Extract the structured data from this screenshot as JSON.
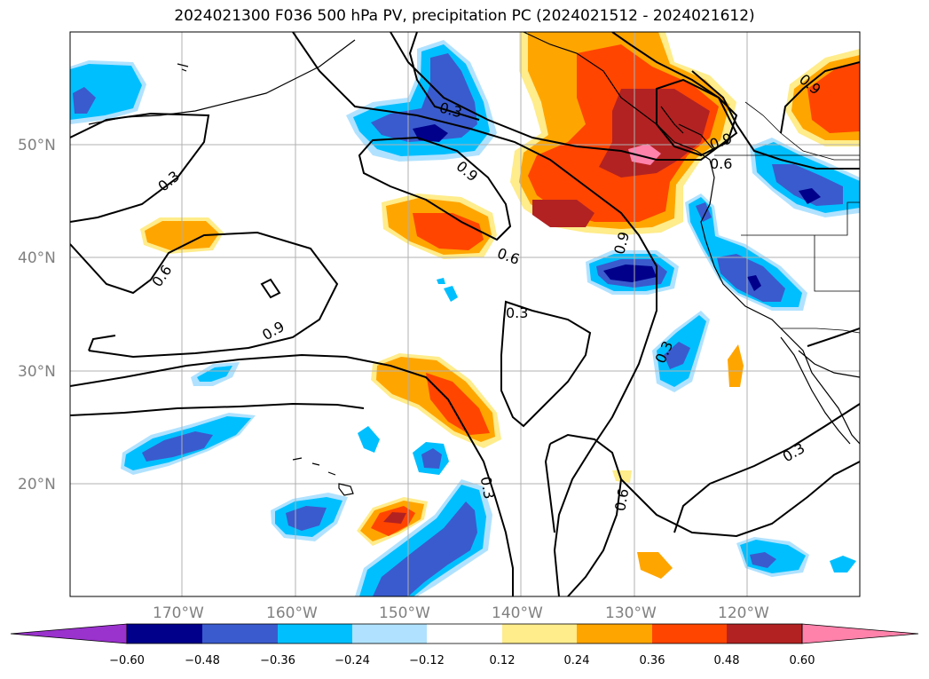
{
  "title": "2024021300 F036 500 hPa PV, precipitation PC (2024021512 - 2024021612)",
  "colors": {
    "deep_purple": "#9a32cd",
    "navy": "#00008b",
    "royal_blue": "#3a5bcd",
    "deep_sky_blue": "#00bfff",
    "light_sky_blue": "#b0e2ff",
    "white": "#ffffff",
    "light_yellow": "#ffec8b",
    "orange": "#ffa500",
    "orange_red": "#ff4500",
    "firebrick": "#b22222",
    "pink": "#ff82ab",
    "grid": "#b0b0b0",
    "coast": "#000000"
  },
  "lat_labels": [
    "50°N",
    "40°N",
    "30°N",
    "20°N"
  ],
  "lon_labels": [
    "170°W",
    "160°W",
    "150°W",
    "140°W",
    "130°W",
    "120°W"
  ],
  "contour_labels": [
    "0.3",
    "0.3",
    "0.3",
    "0.3",
    "0.3",
    "0.3",
    "0.6",
    "0.6",
    "0.6",
    "0.6",
    "0.9",
    "0.9",
    "0.9",
    "0.9",
    "0.9"
  ],
  "colorbar": {
    "ticks": [
      "−0.60",
      "−0.48",
      "−0.36",
      "−0.24",
      "−0.12",
      "0.12",
      "0.24",
      "0.36",
      "0.48",
      "0.60"
    ]
  }
}
